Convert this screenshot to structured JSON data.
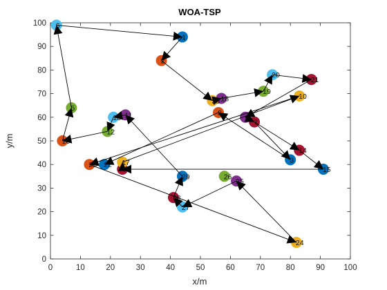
{
  "chart_data": {
    "type": "scatter",
    "title": "WOA-TSP",
    "xlabel": "x/m",
    "ylabel": "y/m",
    "xlim": [
      0,
      100
    ],
    "ylim": [
      0,
      100
    ],
    "xticks": [
      "0",
      "10",
      "20",
      "30",
      "40",
      "50",
      "60",
      "70",
      "80",
      "90",
      "100"
    ],
    "yticks": [
      "0",
      "10",
      "20",
      "30",
      "40",
      "50",
      "60",
      "70",
      "80",
      "90",
      "100"
    ],
    "grid": false,
    "box": true,
    "marker_colors": [
      "#4DBEEE",
      "#0072BD",
      "#D95319",
      "#77AC30",
      "#7E2F8E",
      "#EDB120",
      "#A2142F"
    ],
    "cities": [
      {
        "id": "1",
        "x": 44,
        "y": 94,
        "color": "#0072BD"
      },
      {
        "id": "2",
        "x": 37,
        "y": 84,
        "color": "#D95319"
      },
      {
        "id": "3",
        "x": 80,
        "y": 42,
        "color": "#0072BD"
      },
      {
        "id": "4",
        "x": 24,
        "y": 38,
        "color": "#A2142F"
      },
      {
        "id": "5",
        "x": 7,
        "y": 64,
        "color": "#77AC30"
      },
      {
        "id": "6",
        "x": 2,
        "y": 99,
        "color": "#4DBEEE"
      },
      {
        "id": "7",
        "x": 68,
        "y": 58,
        "color": "#A2142F"
      },
      {
        "id": "8",
        "x": 56,
        "y": 62,
        "color": "#D95319"
      },
      {
        "id": "9",
        "x": 65,
        "y": 60,
        "color": "#7E2F8E"
      },
      {
        "id": "10",
        "x": 83,
        "y": 69,
        "color": "#EDB120"
      },
      {
        "id": "11",
        "x": 25,
        "y": 61,
        "color": "#7E2F8E"
      },
      {
        "id": "12",
        "x": 19,
        "y": 54,
        "color": "#77AC30"
      },
      {
        "id": "13",
        "x": 21,
        "y": 60,
        "color": "#4DBEEE"
      },
      {
        "id": "14",
        "x": 83,
        "y": 46,
        "color": "#A2142F"
      },
      {
        "id": "15",
        "x": 91,
        "y": 38,
        "color": "#0072BD"
      },
      {
        "id": "16",
        "x": 4,
        "y": 50,
        "color": "#D95319"
      },
      {
        "id": "17",
        "x": 24,
        "y": 41,
        "color": "#EDB120"
      },
      {
        "id": "18",
        "x": 57,
        "y": 68,
        "color": "#7E2F8E"
      },
      {
        "id": "19",
        "x": 71,
        "y": 71,
        "color": "#77AC30"
      },
      {
        "id": "20",
        "x": 74,
        "y": 78,
        "color": "#4DBEEE"
      },
      {
        "id": "21",
        "x": 87,
        "y": 76,
        "color": "#A2142F"
      },
      {
        "id": "22",
        "x": 18,
        "y": 40,
        "color": "#0072BD"
      },
      {
        "id": "23",
        "x": 13,
        "y": 40,
        "color": "#D95319"
      },
      {
        "id": "24",
        "x": 82,
        "y": 7,
        "color": "#EDB120"
      },
      {
        "id": "25",
        "x": 62,
        "y": 33,
        "color": "#7E2F8E"
      },
      {
        "id": "26",
        "x": 58,
        "y": 35,
        "color": "#77AC30"
      },
      {
        "id": "27",
        "x": 44,
        "y": 22,
        "color": "#4DBEEE"
      },
      {
        "id": "28",
        "x": 41,
        "y": 26,
        "color": "#A2142F"
      },
      {
        "id": "29",
        "x": 44,
        "y": 35,
        "color": "#0072BD"
      },
      {
        "id": "30",
        "x": 54,
        "y": 67,
        "color": "#EDB120"
      }
    ],
    "tour": [
      "6",
      "1",
      "2",
      "30",
      "18",
      "19",
      "20",
      "21",
      "9",
      "7",
      "14",
      "15",
      "4",
      "17",
      "10",
      "23",
      "24",
      "25",
      "27",
      "28",
      "29",
      "11",
      "13",
      "12",
      "16",
      "5",
      "6"
    ],
    "extra_edges": [
      [
        "7",
        "3"
      ],
      [
        "3",
        "8"
      ],
      [
        "8",
        "22"
      ]
    ]
  }
}
